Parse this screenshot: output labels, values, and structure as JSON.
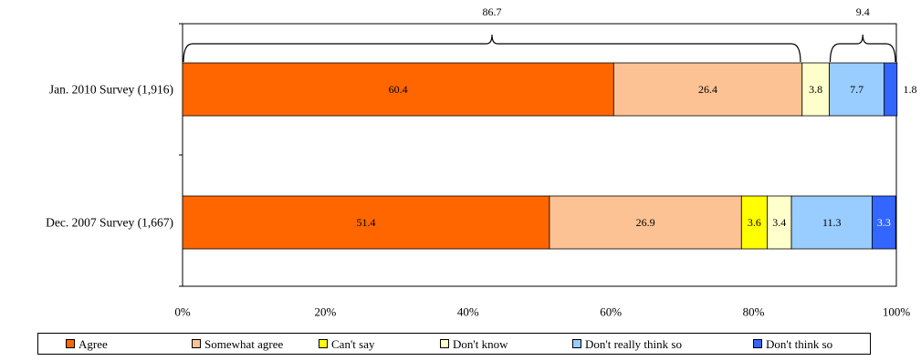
{
  "chart_data": {
    "type": "bar",
    "orientation": "horizontal",
    "stacked": true,
    "categories": [
      "Jan. 2010 Survey (1,916)",
      "Dec. 2007 Survey (1,667)"
    ],
    "series": [
      {
        "name": "Agree",
        "color": "#ff6600",
        "values": [
          60.4,
          51.4
        ]
      },
      {
        "name": "Somewhat agree",
        "color": "#fdc294",
        "values": [
          26.4,
          26.9
        ]
      },
      {
        "name": "Can't say",
        "color": "#ffff00",
        "values": [
          0,
          3.6
        ]
      },
      {
        "name": "Don't know",
        "color": "#ffffcc",
        "values": [
          3.8,
          3.4
        ]
      },
      {
        "name": "Don't really think so",
        "color": "#99ccff",
        "values": [
          7.7,
          11.3
        ]
      },
      {
        "name": "Don't think so",
        "color": "#3366ff",
        "values": [
          1.8,
          3.3
        ]
      }
    ],
    "data_labels": [
      [
        "60.4",
        "26.4",
        "",
        "3.8",
        "7.7",
        "1.8"
      ],
      [
        "51.4",
        "26.9",
        "3.6",
        "3.4",
        "11.3",
        "3.3"
      ]
    ],
    "brackets": [
      {
        "label": "86.7",
        "from": 0,
        "to": 86.7
      },
      {
        "label": "9.4",
        "from": 90.6,
        "to": 100
      }
    ],
    "xlim": [
      0,
      100
    ],
    "xticks": [
      "0%",
      "20%",
      "40%",
      "60%",
      "80%",
      "100%"
    ],
    "legend_position": "bottom",
    "title": "",
    "xlabel": "",
    "ylabel": ""
  }
}
